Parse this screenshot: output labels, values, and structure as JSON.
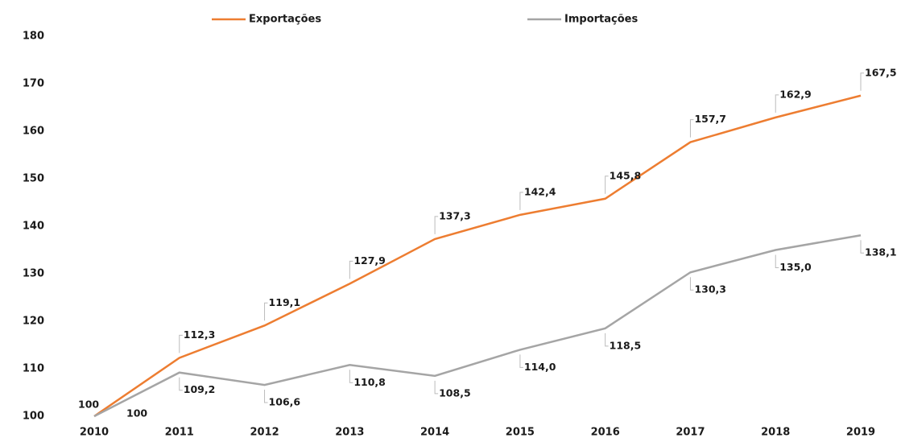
{
  "chart_data": {
    "type": "line",
    "categories": [
      "2010",
      "2011",
      "2012",
      "2013",
      "2014",
      "2015",
      "2016",
      "2017",
      "2018",
      "2019"
    ],
    "series": [
      {
        "name": "Exportações",
        "color": "#ed7d31",
        "values": [
          100,
          112.3,
          119.1,
          127.9,
          137.3,
          142.4,
          145.8,
          157.7,
          162.9,
          167.5
        ],
        "value_labels": [
          "100",
          "112,3",
          "119,1",
          "127,9",
          "137,3",
          "142,4",
          "145,8",
          "157,7",
          "162,9",
          "167,5"
        ]
      },
      {
        "name": "Importações",
        "color": "#a5a5a5",
        "values": [
          100,
          109.2,
          106.6,
          110.8,
          108.5,
          114.0,
          118.5,
          130.3,
          135.0,
          138.1
        ],
        "value_labels": [
          "100",
          "109,2",
          "106,6",
          "110,8",
          "108,5",
          "114,0",
          "118,5",
          "130,3",
          "135,0",
          "138,1"
        ]
      }
    ],
    "ylim": [
      100,
      180
    ],
    "yticks": [
      100,
      110,
      120,
      130,
      140,
      150,
      160,
      170,
      180
    ],
    "grid": false
  }
}
